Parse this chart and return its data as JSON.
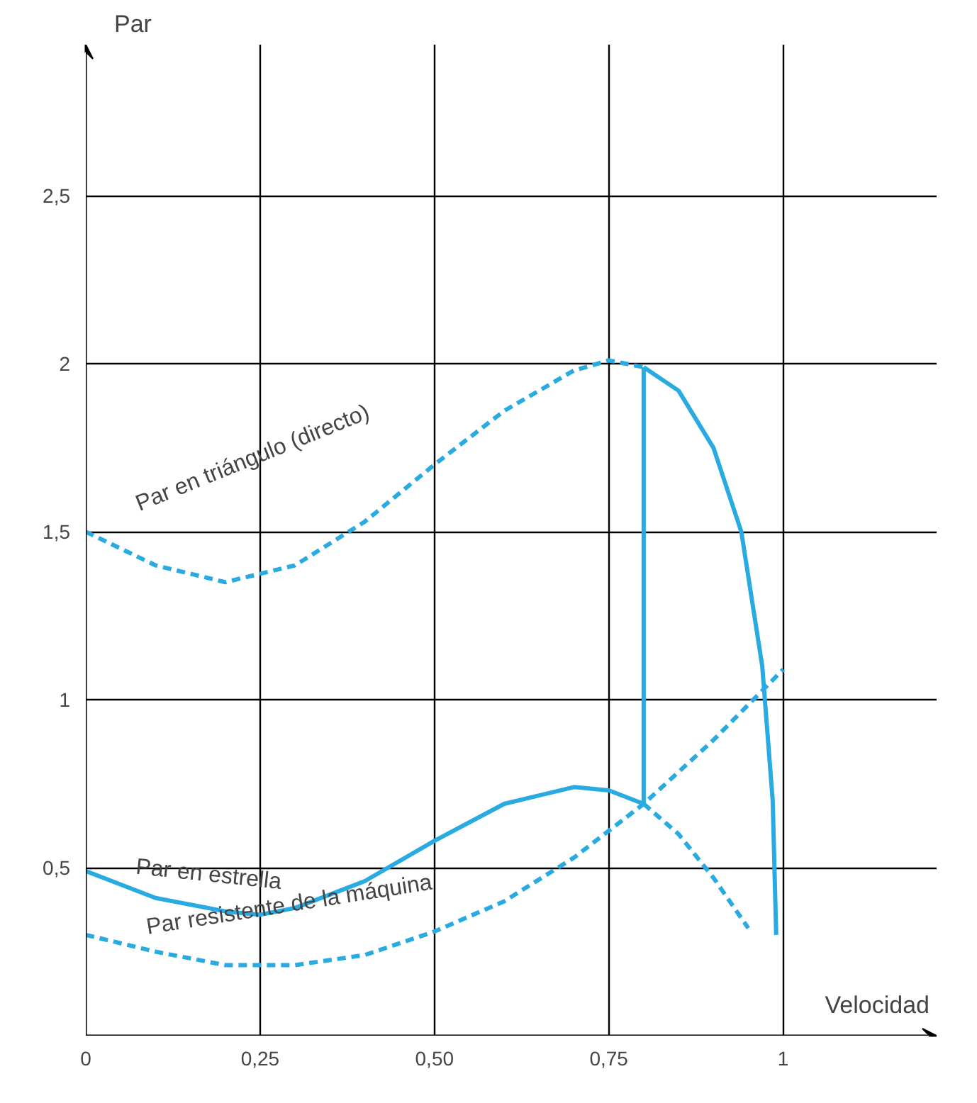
{
  "chart_data": {
    "type": "line",
    "xlabel": "Velocidad",
    "ylabel": "Par",
    "xlim": [
      0,
      1.22
    ],
    "ylim": [
      0,
      2.95
    ],
    "xticks": [
      0,
      {
        "value": 0.25,
        "label": "0,25"
      },
      {
        "value": 0.5,
        "label": "0,50"
      },
      {
        "value": 0.75,
        "label": "0,75"
      },
      1
    ],
    "yticks": [
      {
        "value": 0.5,
        "label": "0,5"
      },
      1,
      {
        "value": 1.5,
        "label": "1,5"
      },
      2,
      {
        "value": 2.5,
        "label": "2,5"
      }
    ],
    "grid": true,
    "series": [
      {
        "color": "#29abe2",
        "line_style": "dashed",
        "x": [
          0,
          0.1,
          0.2,
          0.3,
          0.4,
          0.5,
          0.6,
          0.7,
          0.75,
          0.8
        ],
        "values": [
          1.5,
          1.4,
          1.35,
          1.4,
          1.53,
          1.7,
          1.86,
          1.98,
          2.01,
          1.99
        ]
      },
      {
        "color": "#29abe2",
        "line_style": "solid",
        "x": [
          0.8,
          0.85,
          0.9,
          0.94,
          0.97,
          0.985,
          0.99
        ],
        "values": [
          1.99,
          1.92,
          1.75,
          1.5,
          1.1,
          0.7,
          0.3
        ]
      },
      {
        "color": "#29abe2",
        "line_style": "solid",
        "x": [
          0,
          0.1,
          0.2,
          0.25,
          0.3,
          0.4,
          0.5,
          0.6,
          0.7,
          0.75,
          0.8
        ],
        "values": [
          0.49,
          0.41,
          0.37,
          0.36,
          0.38,
          0.46,
          0.58,
          0.69,
          0.74,
          0.73,
          0.69
        ]
      },
      {
        "color": "#29abe2",
        "line_style": "dashed",
        "x": [
          0.8,
          0.85,
          0.9,
          0.95
        ],
        "values": [
          0.69,
          0.6,
          0.47,
          0.32
        ]
      },
      {
        "color": "#29abe2",
        "line_style": "solid",
        "x": [
          0.8,
          0.8
        ],
        "values": [
          0.69,
          1.99
        ]
      },
      {
        "color": "#29abe2",
        "line_style": "dashed",
        "x": [
          0,
          0.1,
          0.2,
          0.3,
          0.4,
          0.5,
          0.6,
          0.7,
          0.8,
          0.9,
          1
        ],
        "values": [
          0.3,
          0.25,
          0.21,
          0.21,
          0.24,
          0.31,
          0.4,
          0.53,
          0.69,
          0.88,
          1.09
        ]
      }
    ],
    "annotations": [
      "Par en triángulo (directo)",
      "Par en estrella",
      "Par resistente de la máquina"
    ]
  }
}
